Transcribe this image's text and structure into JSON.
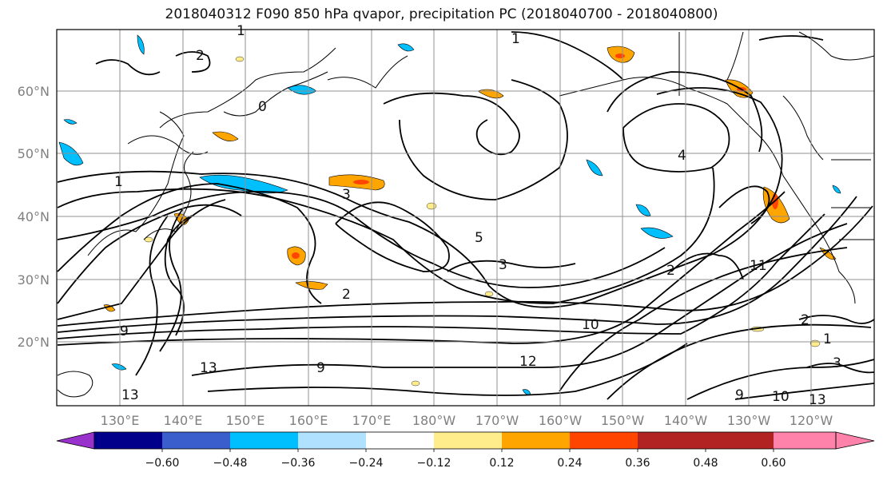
{
  "title": "2018040312 F090 850 hPa qvapor, precipitation PC (2018040700 - 2018040800)",
  "lat_labels": [
    "60°N",
    "50°N",
    "40°N",
    "30°N",
    "20°N"
  ],
  "lon_labels": [
    "130°E",
    "140°E",
    "150°E",
    "160°E",
    "170°E",
    "180°W",
    "170°W",
    "160°W",
    "150°W",
    "140°W",
    "130°W",
    "120°W"
  ],
  "contour_labels": [
    "1",
    "0",
    "2",
    "1",
    "1",
    "3",
    "5",
    "3",
    "2",
    "2",
    "12",
    "13",
    "13",
    "9",
    "9",
    "10",
    "11",
    "4",
    "1",
    "2",
    "3",
    "9",
    "10",
    "13"
  ],
  "colorbar": {
    "ticks": [
      "−0.60",
      "−0.48",
      "−0.36",
      "−0.24",
      "−0.12",
      "0.12",
      "0.24",
      "0.36",
      "0.48",
      "0.60"
    ],
    "colors": [
      "#9932cc",
      "#00008b",
      "#3a5fcd",
      "#00bfff",
      "#b0e2ff",
      "#ffffff",
      "#ffec8b",
      "#ffa500",
      "#ff4500",
      "#b22222",
      "#ff82ab"
    ]
  }
}
